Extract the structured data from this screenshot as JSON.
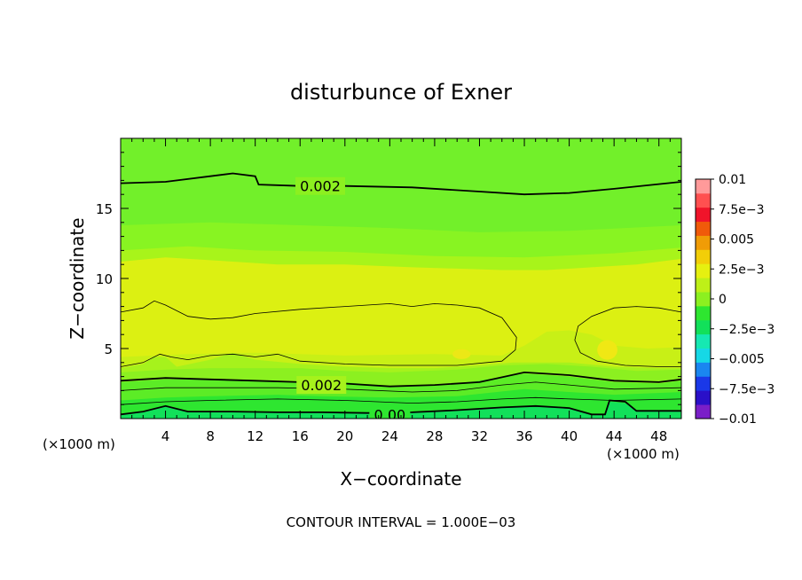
{
  "chart_data": {
    "type": "heatmap",
    "title": "disturbunce of Exner",
    "xlabel": "X−coordinate",
    "ylabel": "Z−coordinate",
    "x_unit_left": "(×1000 m)",
    "x_unit_right": "(×1000 m)",
    "footer": "CONTOUR INTERVAL = 1.000E−03",
    "xlim": [
      0,
      50
    ],
    "ylim": [
      0,
      20
    ],
    "x_ticks": [
      {
        "value": 4,
        "label": "4"
      },
      {
        "value": 8,
        "label": "8"
      },
      {
        "value": 12,
        "label": "12"
      },
      {
        "value": 16,
        "label": "16"
      },
      {
        "value": 20,
        "label": "20"
      },
      {
        "value": 24,
        "label": "24"
      },
      {
        "value": 28,
        "label": "28"
      },
      {
        "value": 32,
        "label": "32"
      },
      {
        "value": 36,
        "label": "36"
      },
      {
        "value": 40,
        "label": "40"
      },
      {
        "value": 44,
        "label": "44"
      },
      {
        "value": 48,
        "label": "48"
      }
    ],
    "y_ticks": [
      {
        "value": 5,
        "label": "5"
      },
      {
        "value": 10,
        "label": "10"
      },
      {
        "value": 15,
        "label": "15"
      }
    ],
    "colorbar": {
      "min": -0.01,
      "max": 0.01,
      "colors": [
        "#7a1fc8",
        "#2a10c8",
        "#1a38e8",
        "#1a86f0",
        "#16d8e6",
        "#16e8b2",
        "#12e05a",
        "#2ee630",
        "#8cf020",
        "#bef018",
        "#e6f010",
        "#f2ce08",
        "#f09c06",
        "#f05a0a",
        "#f0142a",
        "#ff5050",
        "#ff9a9a"
      ],
      "labels": [
        {
          "value": 0.01,
          "label": "0.01"
        },
        {
          "value": 0.0075,
          "label": "7.5e−3"
        },
        {
          "value": 0.005,
          "label": "0.005"
        },
        {
          "value": 0.0025,
          "label": "2.5e−3"
        },
        {
          "value": 0,
          "label": "0"
        },
        {
          "value": -0.0025,
          "label": "−2.5e−3"
        },
        {
          "value": -0.005,
          "label": "−0.005"
        },
        {
          "value": -0.0075,
          "label": "−7.5e−3"
        },
        {
          "value": -0.01,
          "label": "−0.01"
        }
      ]
    },
    "contour_labels": [
      {
        "text": "0.002",
        "x": 17.8,
        "z": 16.6
      },
      {
        "text": "0.002",
        "x": 17.9,
        "z": 2.4
      },
      {
        "text": "0.00",
        "x": 24.0,
        "z": 0.3
      }
    ],
    "bands": [
      {
        "color": "#12e05a",
        "lower": [
          [
            0,
            0
          ],
          [
            50,
            0
          ]
        ]
      },
      {
        "color": "#2ee630",
        "lower": [
          [
            0,
            0.25
          ],
          [
            2,
            0.45
          ],
          [
            4,
            0.85
          ],
          [
            6,
            0.45
          ],
          [
            10,
            0.45
          ],
          [
            14,
            0.45
          ],
          [
            18,
            0.4
          ],
          [
            22,
            0.35
          ],
          [
            26,
            0.45
          ],
          [
            30,
            0.55
          ],
          [
            34,
            0.75
          ],
          [
            37,
            0.85
          ],
          [
            40,
            0.7
          ],
          [
            42,
            0.3
          ],
          [
            43.2,
            0.25
          ],
          [
            43.6,
            1.2
          ],
          [
            45,
            1.1
          ],
          [
            46,
            0.5
          ],
          [
            48,
            0.55
          ],
          [
            50,
            0.5
          ]
        ]
      },
      {
        "color": "#5cec26",
        "lower": [
          [
            0,
            1.3
          ],
          [
            4,
            1.5
          ],
          [
            8,
            1.6
          ],
          [
            14,
            1.7
          ],
          [
            18,
            1.6
          ],
          [
            24,
            1.5
          ],
          [
            30,
            1.6
          ],
          [
            36,
            2.1
          ],
          [
            40,
            1.9
          ],
          [
            44,
            1.7
          ],
          [
            50,
            1.9
          ]
        ]
      },
      {
        "color": "#8cf020",
        "lower": [
          [
            0,
            2.6
          ],
          [
            4,
            2.8
          ],
          [
            8,
            2.8
          ],
          [
            12,
            2.7
          ],
          [
            16,
            2.6
          ],
          [
            20,
            2.6
          ],
          [
            24,
            2.3
          ],
          [
            30,
            2.5
          ],
          [
            36,
            3.2
          ],
          [
            40,
            3.0
          ],
          [
            44,
            2.6
          ],
          [
            48,
            2.5
          ],
          [
            50,
            2.7
          ]
        ]
      },
      {
        "color": "#a6f21c",
        "lower": [
          [
            0,
            3.3
          ],
          [
            4,
            3.5
          ],
          [
            8,
            3.6
          ],
          [
            12,
            3.6
          ],
          [
            16,
            3.6
          ],
          [
            20,
            3.4
          ],
          [
            24,
            3.3
          ],
          [
            30,
            3.5
          ],
          [
            34,
            3.8
          ],
          [
            38,
            3.9
          ],
          [
            42,
            3.7
          ],
          [
            46,
            3.4
          ],
          [
            50,
            3.5
          ]
        ]
      },
      {
        "color": "#c8f016",
        "lower": [
          [
            0,
            3.6
          ],
          [
            2,
            3.9
          ],
          [
            3,
            4.4
          ],
          [
            4,
            4.4
          ],
          [
            5,
            3.7
          ],
          [
            8,
            4.2
          ],
          [
            10,
            4.7
          ],
          [
            12,
            4.2
          ],
          [
            16,
            3.9
          ],
          [
            20,
            3.7
          ],
          [
            24,
            3.6
          ],
          [
            28,
            3.6
          ],
          [
            32,
            3.8
          ],
          [
            35,
            4.0
          ],
          [
            40,
            4.0
          ],
          [
            44,
            3.7
          ],
          [
            48,
            3.6
          ],
          [
            50,
            3.6
          ]
        ]
      },
      {
        "color": "#dcf012",
        "lower": [
          [
            0,
            4.4
          ],
          [
            6,
            4.6
          ],
          [
            12,
            4.7
          ],
          [
            20,
            4.5
          ],
          [
            28,
            4.6
          ],
          [
            34,
            4.5
          ],
          [
            36,
            5.2
          ],
          [
            38,
            6.2
          ],
          [
            40,
            6.3
          ],
          [
            42,
            6.0
          ],
          [
            44,
            5.2
          ],
          [
            47,
            5.0
          ],
          [
            50,
            5.1
          ]
        ]
      },
      {
        "color": "#a8f41a",
        "lower": [
          [
            0,
            11.2
          ],
          [
            4,
            11.5
          ],
          [
            10,
            11.2
          ],
          [
            14,
            11.0
          ],
          [
            20,
            11.0
          ],
          [
            26,
            10.8
          ],
          [
            30,
            10.7
          ],
          [
            34,
            10.6
          ],
          [
            38,
            10.6
          ],
          [
            42,
            10.8
          ],
          [
            46,
            11.0
          ],
          [
            50,
            11.4
          ]
        ]
      },
      {
        "color": "#88f422",
        "lower": [
          [
            0,
            12.0
          ],
          [
            6,
            12.3
          ],
          [
            12,
            12.0
          ],
          [
            20,
            11.9
          ],
          [
            28,
            11.6
          ],
          [
            36,
            11.5
          ],
          [
            44,
            11.8
          ],
          [
            50,
            12.2
          ]
        ]
      },
      {
        "color": "#72f02a",
        "lower": [
          [
            0,
            13.8
          ],
          [
            8,
            14.0
          ],
          [
            16,
            13.8
          ],
          [
            24,
            13.6
          ],
          [
            32,
            13.3
          ],
          [
            40,
            13.4
          ],
          [
            50,
            13.8
          ]
        ]
      }
    ],
    "contours": [
      {
        "weight": "heavy",
        "points": [
          [
            0,
            16.8
          ],
          [
            4,
            16.9
          ],
          [
            8,
            17.3
          ],
          [
            10,
            17.5
          ],
          [
            12,
            17.3
          ],
          [
            12.3,
            16.7
          ],
          [
            16,
            16.6
          ],
          [
            20,
            16.6
          ],
          [
            26,
            16.5
          ],
          [
            32,
            16.2
          ],
          [
            36,
            16.0
          ],
          [
            40,
            16.1
          ],
          [
            44,
            16.4
          ],
          [
            50,
            16.9
          ]
        ]
      },
      {
        "weight": "light",
        "points": [
          [
            0,
            7.6
          ],
          [
            2,
            7.9
          ],
          [
            3,
            8.4
          ],
          [
            4,
            8.1
          ],
          [
            6,
            7.3
          ],
          [
            8,
            7.1
          ],
          [
            10,
            7.2
          ],
          [
            12,
            7.5
          ],
          [
            16,
            7.8
          ],
          [
            20,
            8.0
          ],
          [
            24,
            8.2
          ],
          [
            26,
            8.0
          ],
          [
            28,
            8.2
          ],
          [
            30,
            8.1
          ],
          [
            32,
            7.9
          ],
          [
            34,
            7.2
          ],
          [
            35.3,
            5.8
          ],
          [
            35.2,
            4.9
          ],
          [
            34,
            4.1
          ],
          [
            30,
            3.8
          ],
          [
            24,
            3.8
          ],
          [
            20,
            3.9
          ],
          [
            16,
            4.1
          ],
          [
            14,
            4.6
          ],
          [
            12,
            4.4
          ],
          [
            10,
            4.6
          ],
          [
            8,
            4.5
          ],
          [
            6,
            4.2
          ],
          [
            4.5,
            4.4
          ],
          [
            3.5,
            4.6
          ],
          [
            2,
            4.0
          ],
          [
            0,
            3.7
          ]
        ]
      },
      {
        "weight": "light",
        "points": [
          [
            50,
            7.6
          ],
          [
            48,
            7.9
          ],
          [
            46,
            8.0
          ],
          [
            44,
            7.9
          ],
          [
            42,
            7.3
          ],
          [
            40.8,
            6.6
          ],
          [
            40.5,
            5.6
          ],
          [
            41,
            4.7
          ],
          [
            42.5,
            4.1
          ],
          [
            45,
            3.8
          ],
          [
            48,
            3.7
          ],
          [
            50,
            3.7
          ]
        ]
      },
      {
        "weight": "heavy",
        "points": [
          [
            0,
            2.7
          ],
          [
            4,
            2.9
          ],
          [
            8,
            2.8
          ],
          [
            12,
            2.7
          ],
          [
            16,
            2.6
          ],
          [
            20,
            2.5
          ],
          [
            24,
            2.3
          ],
          [
            28,
            2.4
          ],
          [
            32,
            2.6
          ],
          [
            36,
            3.3
          ],
          [
            40,
            3.1
          ],
          [
            44,
            2.7
          ],
          [
            48,
            2.6
          ],
          [
            50,
            2.8
          ]
        ]
      },
      {
        "weight": "light",
        "points": [
          [
            0,
            2.0
          ],
          [
            4,
            2.2
          ],
          [
            8,
            2.2
          ],
          [
            14,
            2.2
          ],
          [
            20,
            2.1
          ],
          [
            26,
            1.9
          ],
          [
            30,
            2.0
          ],
          [
            34,
            2.4
          ],
          [
            37,
            2.6
          ],
          [
            40,
            2.4
          ],
          [
            44,
            2.1
          ],
          [
            50,
            2.2
          ]
        ]
      },
      {
        "weight": "light",
        "points": [
          [
            0,
            1.0
          ],
          [
            4,
            1.2
          ],
          [
            8,
            1.3
          ],
          [
            14,
            1.4
          ],
          [
            20,
            1.3
          ],
          [
            26,
            1.1
          ],
          [
            30,
            1.2
          ],
          [
            34,
            1.4
          ],
          [
            37,
            1.5
          ],
          [
            40,
            1.4
          ],
          [
            44,
            1.3
          ],
          [
            50,
            1.4
          ]
        ]
      },
      {
        "weight": "heavy",
        "points": [
          [
            0,
            0.3
          ],
          [
            2,
            0.5
          ],
          [
            4,
            0.9
          ],
          [
            6,
            0.5
          ],
          [
            10,
            0.5
          ],
          [
            14,
            0.45
          ],
          [
            18,
            0.45
          ],
          [
            22,
            0.4
          ],
          [
            26,
            0.45
          ],
          [
            30,
            0.6
          ],
          [
            34,
            0.8
          ],
          [
            37,
            0.9
          ],
          [
            40,
            0.75
          ],
          [
            42,
            0.3
          ],
          [
            43.2,
            0.3
          ],
          [
            43.6,
            1.3
          ],
          [
            45,
            1.2
          ],
          [
            46,
            0.55
          ],
          [
            50,
            0.55
          ]
        ]
      }
    ],
    "blobs": [
      {
        "x": 43.4,
        "z": 4.9,
        "rx": 0.9,
        "rz": 0.7,
        "color": "#f0e814"
      },
      {
        "x": 30.4,
        "z": 4.6,
        "rx": 0.8,
        "rz": 0.35,
        "color": "#ece816"
      }
    ]
  }
}
